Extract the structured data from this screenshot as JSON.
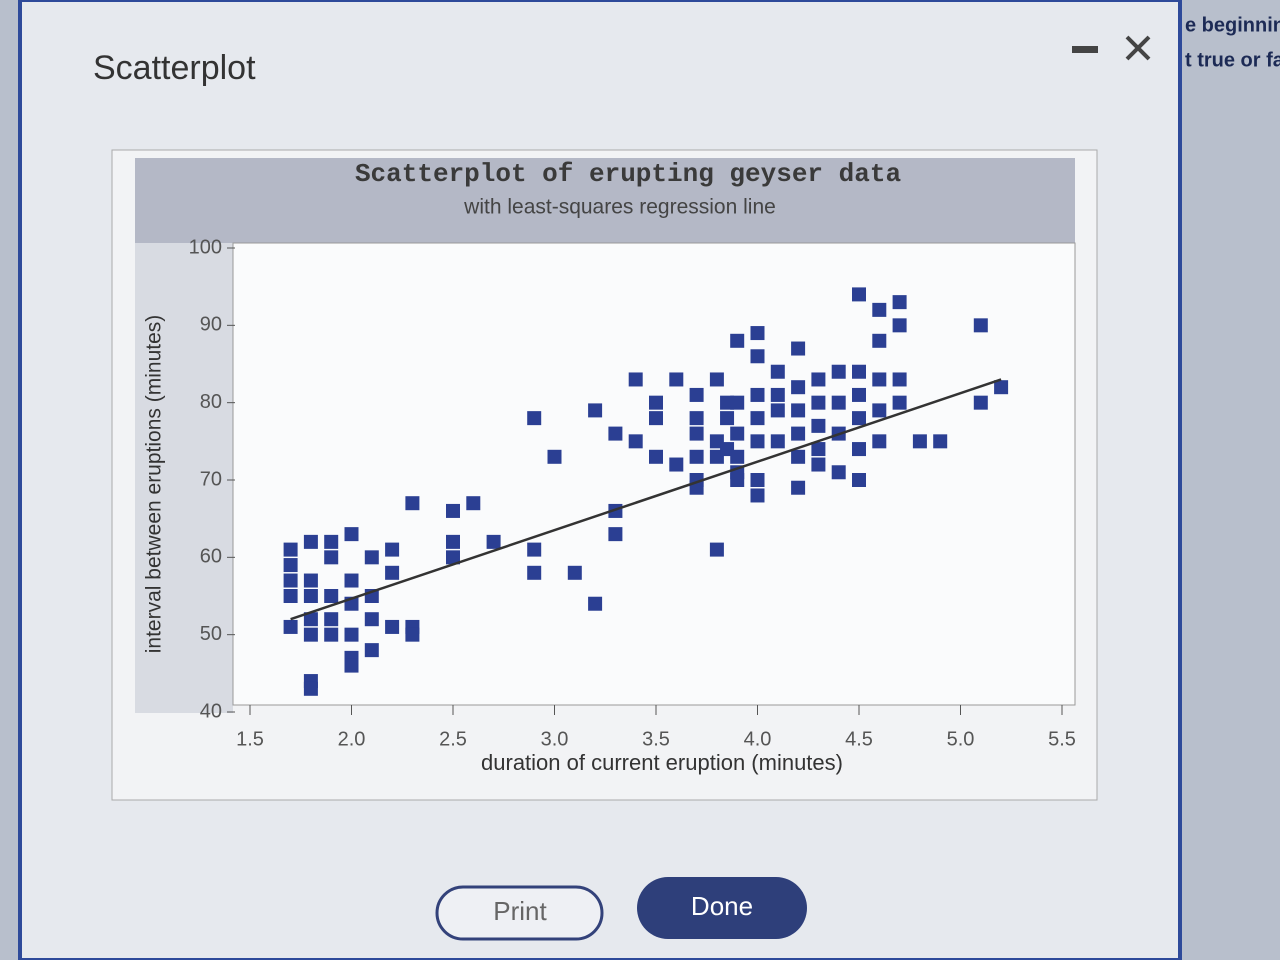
{
  "dialog": {
    "title": "Scatterplot",
    "buttons": [
      "Print",
      "Done"
    ]
  },
  "background_text": [
    "e beginnin",
    "t true or fa"
  ],
  "chart_data": {
    "type": "scatter",
    "title": "Scatterplot of erupting geyser data",
    "subtitle": "with least-squares regression line",
    "x_label": "duration of current eruption (minutes)",
    "y_label": "interval between eruptions (minutes)",
    "color": "#2b3f93",
    "x": [
      1.7,
      1.7,
      1.7,
      1.7,
      1.7,
      1.8,
      1.8,
      1.8,
      1.8,
      1.8,
      1.8,
      1.8,
      1.9,
      1.9,
      1.9,
      1.9,
      1.9,
      2.0,
      2.0,
      2.0,
      2.0,
      2.0,
      2.0,
      2.1,
      2.1,
      2.1,
      2.1,
      2.2,
      2.2,
      2.2,
      2.3,
      2.3,
      2.3,
      2.5,
      2.5,
      2.5,
      2.6,
      2.7,
      2.9,
      2.9,
      2.9,
      3.0,
      3.1,
      3.2,
      3.2,
      3.3,
      3.3,
      3.3,
      3.4,
      3.4,
      3.5,
      3.5,
      3.5,
      3.6,
      3.6,
      3.7,
      3.7,
      3.7,
      3.7,
      3.7,
      3.7,
      3.8,
      3.8,
      3.8,
      3.8,
      3.85,
      3.85,
      3.85,
      3.9,
      3.9,
      3.9,
      3.9,
      3.9,
      3.9,
      4.0,
      4.0,
      4.0,
      4.0,
      4.0,
      4.0,
      4.0,
      4.1,
      4.1,
      4.1,
      4.1,
      4.2,
      4.2,
      4.2,
      4.2,
      4.2,
      4.2,
      4.3,
      4.3,
      4.3,
      4.3,
      4.3,
      4.4,
      4.4,
      4.4,
      4.4,
      4.5,
      4.5,
      4.5,
      4.5,
      4.5,
      4.5,
      4.6,
      4.6,
      4.6,
      4.6,
      4.6,
      4.7,
      4.7,
      4.7,
      4.7,
      4.8,
      4.9,
      5.1,
      5.1,
      5.2
    ],
    "values": [
      61,
      59,
      57,
      55,
      51,
      62,
      57,
      55,
      52,
      50,
      44,
      43,
      62,
      60,
      55,
      52,
      50,
      63,
      57,
      54,
      50,
      47,
      46,
      60,
      55,
      52,
      48,
      61,
      58,
      51,
      67,
      51,
      50,
      66,
      62,
      60,
      67,
      62,
      78,
      61,
      58,
      73,
      58,
      79,
      54,
      76,
      66,
      63,
      75,
      83,
      80,
      78,
      73,
      83,
      72,
      81,
      78,
      76,
      73,
      70,
      69,
      83,
      75,
      73,
      61,
      80,
      78,
      74,
      88,
      80,
      76,
      73,
      71,
      70,
      89,
      86,
      81,
      78,
      75,
      70,
      68,
      84,
      81,
      79,
      75,
      87,
      82,
      79,
      76,
      73,
      69,
      83,
      80,
      77,
      74,
      72,
      84,
      80,
      76,
      71,
      94,
      84,
      81,
      78,
      74,
      70,
      92,
      88,
      83,
      79,
      75,
      93,
      90,
      83,
      80,
      75,
      75,
      90,
      80,
      82
    ],
    "regression_line": {
      "x": [
        1.7,
        5.2
      ],
      "values": [
        52,
        83
      ],
      "color": "#333333"
    },
    "xlim": [
      1.5,
      5.5
    ],
    "ylim": [
      40,
      100
    ],
    "xticks": [
      1.5,
      {
        "value": 2,
        "label": "2.0"
      },
      2.5,
      {
        "value": 3,
        "label": "3.0"
      },
      3.5,
      {
        "value": 4,
        "label": "4.0"
      },
      4.5,
      {
        "value": 5,
        "label": "5.0"
      },
      5.5
    ],
    "yticks": [
      40,
      50,
      60,
      70,
      80,
      90,
      100
    ]
  }
}
